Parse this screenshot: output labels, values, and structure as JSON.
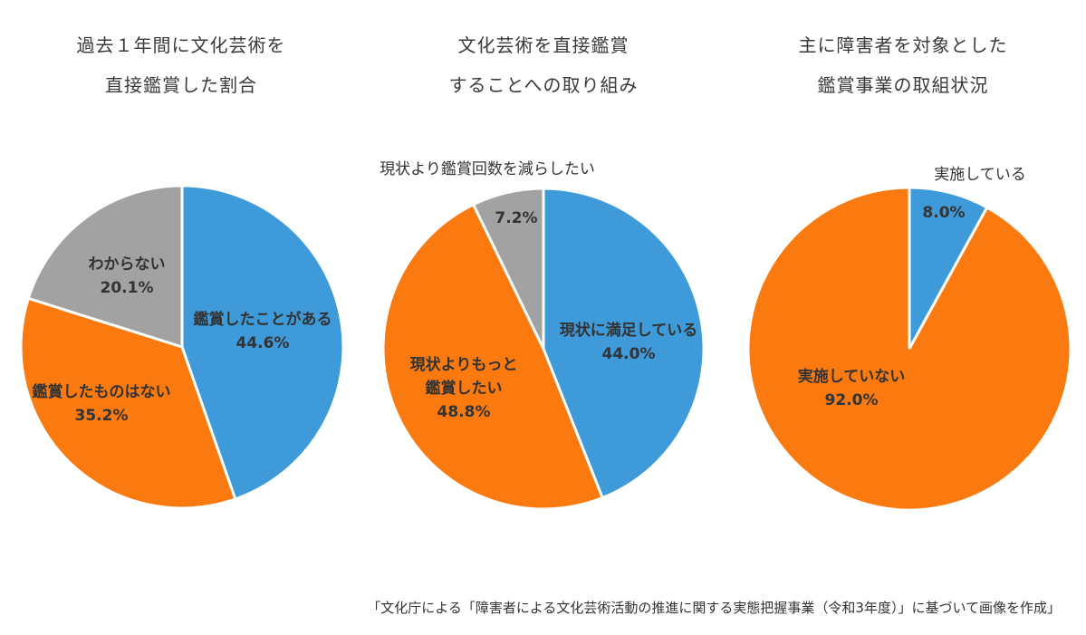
{
  "source_note": "「文化庁による「障害者による文化芸術活動の推進に関する実態把握事業（令和3年度）」に基づいて画像を作成」",
  "colors": {
    "blue": "#3e9ad8",
    "orange": "#fb7a10",
    "gray": "#a2a2a2"
  },
  "chart_data": [
    {
      "type": "pie",
      "title_lines": [
        "過去１年間に文化芸術を",
        "直接鑑賞した割合"
      ],
      "slices": [
        {
          "label": "鑑賞したことがある",
          "value": 44.6,
          "value_label": "44.6%",
          "color": "#3e9ad8"
        },
        {
          "label": "鑑賞したものはない",
          "value": 35.2,
          "value_label": "35.2%",
          "color": "#fb7a10"
        },
        {
          "label": "わからない",
          "value": 20.1,
          "value_label": "20.1%",
          "color": "#a2a2a2"
        }
      ]
    },
    {
      "type": "pie",
      "title_lines": [
        "文化芸術を直接鑑賞",
        "することへの取り組み"
      ],
      "slices": [
        {
          "label": "現状に満足している",
          "value": 44.0,
          "value_label": "44.0%",
          "color": "#3e9ad8"
        },
        {
          "label": "現状よりもっと 鑑賞したい",
          "label_lines": [
            "現状よりもっと",
            "鑑賞したい"
          ],
          "value": 48.8,
          "value_label": "48.8%",
          "color": "#fb7a10"
        },
        {
          "label": "現状より鑑賞回数を減らしたい",
          "value": 7.2,
          "value_label": "7.2%",
          "color": "#a2a2a2"
        }
      ]
    },
    {
      "type": "pie",
      "title_lines": [
        "主に障害者を対象とした",
        "鑑賞事業の取組状況"
      ],
      "slices": [
        {
          "label": "実施している",
          "value": 8.0,
          "value_label": "8.0%",
          "color": "#3e9ad8"
        },
        {
          "label": "実施していない",
          "value": 92.0,
          "value_label": "92.0%",
          "color": "#fb7a10"
        }
      ]
    }
  ]
}
